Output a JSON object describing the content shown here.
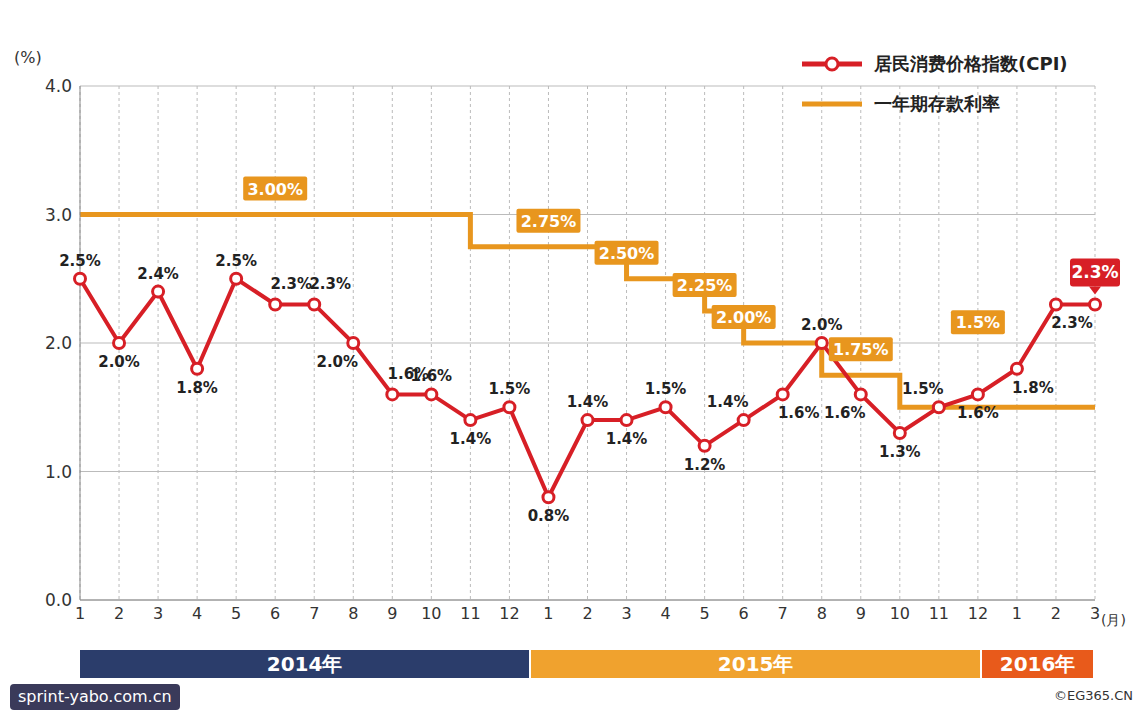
{
  "chart_data": {
    "type": "line",
    "y_label": "(%)",
    "x_label": "(月)",
    "categories": [
      "1",
      "2",
      "3",
      "4",
      "5",
      "6",
      "7",
      "8",
      "9",
      "10",
      "11",
      "12",
      "1",
      "2",
      "3",
      "4",
      "5",
      "6",
      "7",
      "8",
      "9",
      "10",
      "11",
      "12",
      "1",
      "2",
      "3"
    ],
    "years": [
      {
        "label": "2014年",
        "count": 12,
        "color": "#2b3d6b"
      },
      {
        "label": "2015年",
        "count": 12,
        "color": "#f0a22e"
      },
      {
        "label": "2016年",
        "count": 3,
        "color": "#e85a1b"
      }
    ],
    "series": [
      {
        "name": "居民消费价格指数(CPI)",
        "color": "#d71f26",
        "marker": "circle",
        "line_style": "solid",
        "values": [
          2.5,
          2.0,
          2.4,
          1.8,
          2.5,
          2.3,
          2.3,
          2.0,
          1.6,
          1.6,
          1.4,
          1.5,
          0.8,
          1.4,
          1.4,
          1.5,
          1.2,
          1.4,
          1.6,
          2.0,
          1.6,
          1.3,
          1.5,
          1.6,
          1.8,
          2.3,
          2.3
        ],
        "value_labels": [
          "2.5%",
          "2.0%",
          "2.4%",
          "1.8%",
          "2.5%",
          "2.3%",
          "2.3%",
          "2.0%",
          "1.6%",
          "1.6%",
          "1.4%",
          "1.5%",
          "0.8%",
          "1.4%",
          "1.4%",
          "1.5%",
          "1.2%",
          "1.4%",
          "1.6%",
          "2.0%",
          "1.6%",
          "1.3%",
          "1.5%",
          "1.6%",
          "1.8%",
          "2.3%",
          "2.3%"
        ]
      },
      {
        "name": "一年期存款利率",
        "color": "#e8961e",
        "line_style": "step",
        "values": [
          3.0,
          3.0,
          3.0,
          3.0,
          3.0,
          3.0,
          3.0,
          3.0,
          3.0,
          3.0,
          2.75,
          2.75,
          2.75,
          2.75,
          2.5,
          2.5,
          2.25,
          2.0,
          2.0,
          1.75,
          1.75,
          1.5,
          1.5,
          1.5,
          1.5,
          1.5,
          1.5
        ],
        "value_labels": [
          null,
          null,
          null,
          null,
          null,
          "3.00%",
          null,
          null,
          null,
          null,
          null,
          null,
          "2.75%",
          null,
          "2.50%",
          null,
          "2.25%",
          "2.00%",
          null,
          null,
          "1.75%",
          null,
          null,
          "1.5%",
          null,
          null,
          null
        ]
      }
    ],
    "ylim": [
      0,
      4
    ],
    "yticks": [
      {
        "value": 0,
        "label": "0.0"
      },
      {
        "value": 1,
        "label": "1.0"
      },
      {
        "value": 2,
        "label": "2.0"
      },
      {
        "value": 3,
        "label": "3.0"
      },
      {
        "value": 4,
        "label": "4.0"
      }
    ],
    "grid": true,
    "legend": "top-right",
    "data_labels": true,
    "watermark": "sprint-yabo.com.cn",
    "source": "©EG365.CN"
  }
}
